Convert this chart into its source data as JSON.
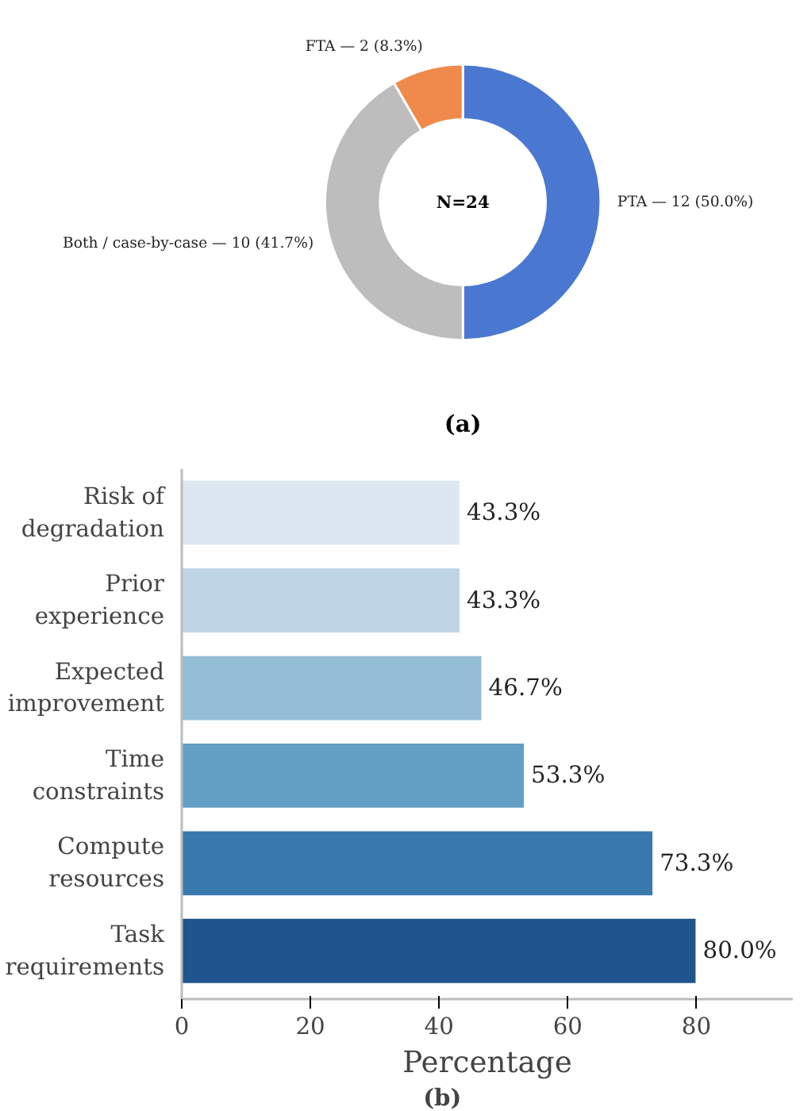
{
  "chart_data": [
    {
      "type": "donut",
      "categories": [
        "PTA",
        "Both / case-by-case",
        "FTA"
      ],
      "values": [
        12,
        10,
        2
      ],
      "colors": [
        "#4a78d0",
        "#bdbdbd",
        "#ef8a4c"
      ],
      "value_labels": [
        "— 12 (50.0%)",
        "— 10 (41.7%)",
        "— 2 (8.3%)"
      ],
      "annotations": [
        "N=24",
        "(a)"
      ]
    },
    {
      "type": "bar",
      "orientation": "horizontal",
      "categories": [
        "Risk of degradation",
        "Prior experience",
        "Expected improvement",
        "Time constraints",
        "Compute resources",
        "Task requirements"
      ],
      "values": [
        43.3,
        43.3,
        46.7,
        53.3,
        73.3,
        80.0
      ],
      "colors": [
        "#dde7f2",
        "#bfd5e6",
        "#94bdd6",
        "#639ec5",
        "#3a79ae",
        "#1f548c"
      ],
      "value_labels": [
        "43.3%",
        "43.3%",
        "46.7%",
        "53.3%",
        "73.3%",
        "80.0%"
      ],
      "xlim": [
        0,
        95
      ],
      "xticks": [
        0,
        20,
        40,
        60,
        80
      ],
      "xlabel": "Percentage",
      "grid": false,
      "annotations": [
        "(b)"
      ]
    }
  ]
}
